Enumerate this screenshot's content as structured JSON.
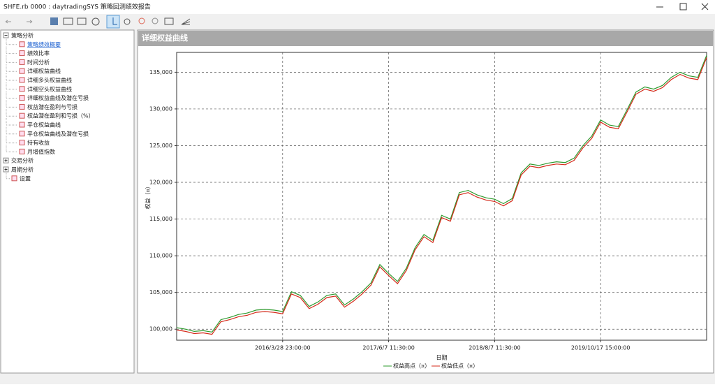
{
  "window": {
    "title": "SHFE.rb 0000 : daytradingSYS 策略回测绩效报告"
  },
  "tree": [
    {
      "label": "策略分析",
      "children": [
        "策略绩效概要",
        "绩效比率",
        "时间分析",
        "详细权益曲线",
        "详细多头权益曲线",
        "详细空头权益曲线",
        "详细权益曲线及潜在亏损",
        "权益潜在盈利与亏损",
        "权益潜在盈利和亏损（%）",
        "平仓权益曲线",
        "平仓权益曲线及潜在亏损",
        "持有收益",
        "月增值指数"
      ]
    },
    {
      "label": "交易分析"
    },
    {
      "label": "周期分析"
    },
    {
      "label": "设置"
    }
  ],
  "chart_data": {
    "type": "line",
    "title": "详细权益曲线",
    "x_label": "日期",
    "y_label": "权益（¤）",
    "categories": [
      null,
      null,
      null,
      null,
      null,
      null,
      null,
      null,
      null,
      null,
      null,
      null,
      "2016/3/28 23:00:00",
      null,
      null,
      null,
      null,
      null,
      null,
      null,
      null,
      null,
      null,
      null,
      "2017/6/7 11:30:00",
      null,
      null,
      null,
      null,
      null,
      null,
      null,
      null,
      null,
      null,
      null,
      "2018/8/7 11:30:00",
      null,
      null,
      null,
      null,
      null,
      null,
      null,
      null,
      null,
      null,
      null,
      "2019/10/17 15:00:00",
      null,
      null,
      null,
      null,
      null,
      null,
      null,
      null,
      null,
      null,
      null,
      null
    ],
    "series": [
      {
        "name": "权益高点（¤）",
        "color": "#2e9a2e",
        "values": [
          100200,
          100000,
          99700,
          99800,
          99600,
          101300,
          101600,
          102000,
          102200,
          102600,
          102700,
          102600,
          102400,
          105100,
          104600,
          103100,
          103700,
          104600,
          104800,
          103300,
          104100,
          105100,
          106300,
          108800,
          107600,
          106500,
          108300,
          111100,
          112900,
          112100,
          115500,
          115000,
          118600,
          118900,
          118300,
          117900,
          117700,
          117100,
          117800,
          121300,
          122500,
          122300,
          122600,
          122800,
          122700,
          123300,
          125000,
          126300,
          128500,
          127800,
          127600,
          129900,
          132300,
          133000,
          132700,
          133200,
          134300,
          135000,
          134500,
          134300,
          137300
        ]
      },
      {
        "name": "权益低点（¤）",
        "color": "#d42a1a",
        "values": [
          99900,
          99700,
          99400,
          99500,
          99300,
          101000,
          101300,
          101700,
          101900,
          102300,
          102400,
          102300,
          102100,
          104800,
          104300,
          102800,
          103400,
          104300,
          104500,
          103000,
          103800,
          104800,
          106000,
          108500,
          107300,
          106200,
          108000,
          110800,
          112600,
          111800,
          115200,
          114700,
          118300,
          118600,
          118000,
          117600,
          117400,
          116800,
          117500,
          121000,
          122200,
          122000,
          122300,
          122500,
          122400,
          123000,
          124700,
          126000,
          128200,
          127500,
          127300,
          129600,
          132000,
          132700,
          132400,
          132900,
          134000,
          134700,
          134200,
          134000,
          137000
        ]
      }
    ],
    "ylim": [
      98500,
      137700
    ],
    "yticks": [
      {
        "value": 100000,
        "label": "100,000"
      },
      {
        "value": 105000,
        "label": "105,000"
      },
      {
        "value": 110000,
        "label": "110,000"
      },
      {
        "value": 115000,
        "label": "115,000"
      },
      {
        "value": 120000,
        "label": "120,000"
      },
      {
        "value": 125000,
        "label": "125,000"
      },
      {
        "value": 130000,
        "label": "130,000"
      },
      {
        "value": 135000,
        "label": "135,000"
      }
    ],
    "grid": true
  }
}
